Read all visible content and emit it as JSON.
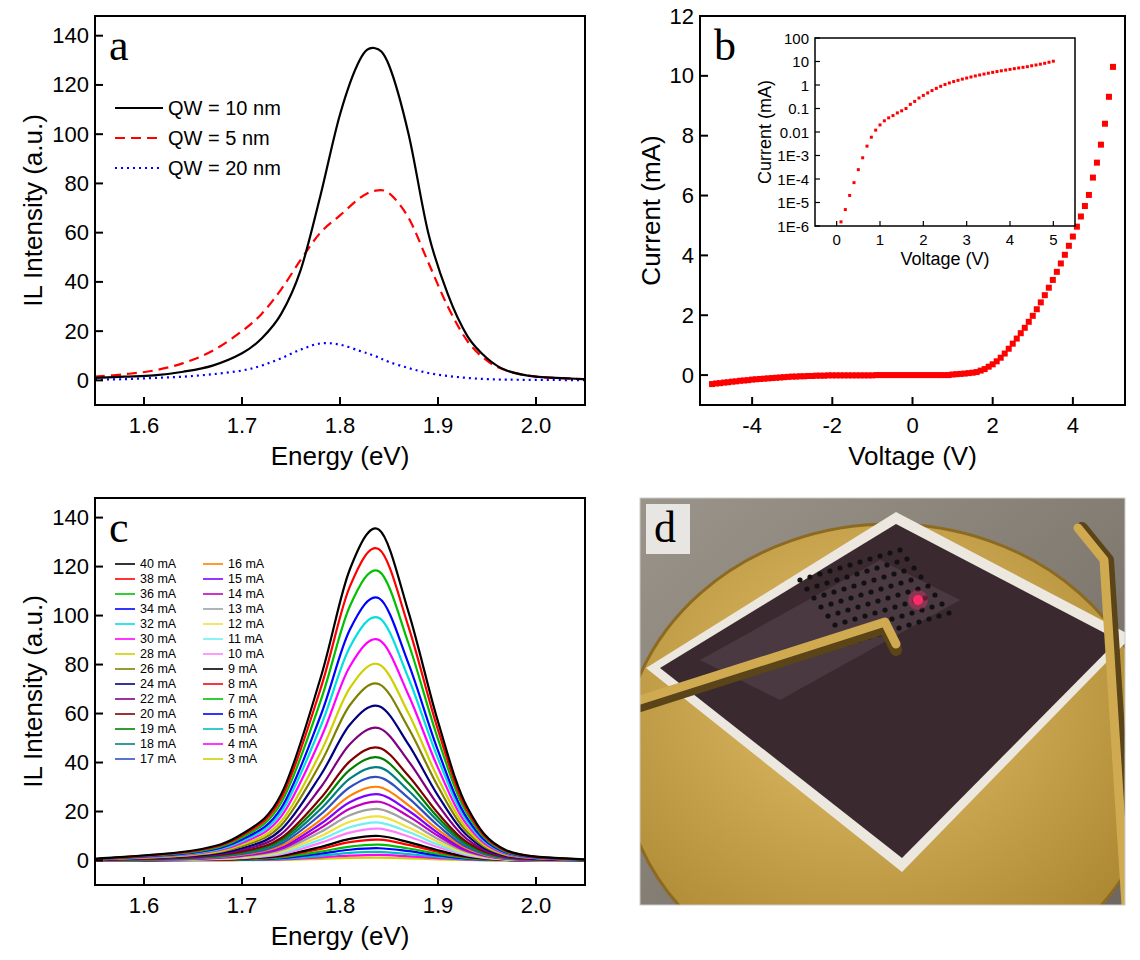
{
  "chart_data": [
    {
      "type": "line",
      "panel": "a",
      "xlabel": "Energy (eV)",
      "ylabel": "IL Intensity (a.u.)",
      "xlim": [
        1.55,
        2.05
      ],
      "ylim": [
        -10,
        148
      ],
      "xticks": [
        1.6,
        1.7,
        1.8,
        1.9,
        {
          "value": 2,
          "label": "2.0"
        }
      ],
      "yticks": [
        0,
        20,
        40,
        60,
        80,
        100,
        120,
        140
      ],
      "grid": false,
      "legend": "upper left",
      "x": [
        1.55,
        1.58,
        1.61,
        1.64,
        1.67,
        1.7,
        1.72,
        1.74,
        1.76,
        1.78,
        1.8,
        1.82,
        1.835,
        1.85,
        1.87,
        1.89,
        1.91,
        1.93,
        1.95,
        1.97,
        2,
        2.05
      ],
      "series": [
        {
          "name": "QW = 10 nm",
          "color": "#000000",
          "line_style": "solid",
          "values": [
            1,
            1.5,
            2,
            3.5,
            6,
            11,
            17,
            27,
            45,
            75,
            108,
            130,
            135,
            128,
            100,
            60,
            35,
            18,
            9,
            4,
            1.5,
            0.5
          ]
        },
        {
          "name": "QW = 5 nm",
          "color": "#ff0000",
          "line_style": "dashed",
          "values": [
            1.5,
            2.5,
            4,
            7,
            12,
            20,
            27,
            37,
            49,
            60,
            67,
            74,
            77,
            76,
            66,
            48,
            30,
            16,
            8,
            4,
            1.5,
            0.5
          ]
        },
        {
          "name": "QW = 20 nm",
          "color": "#0000ff",
          "line_style": "dotted",
          "values": [
            0.3,
            0.5,
            1,
            1.5,
            2.5,
            4,
            6,
            9,
            12.5,
            15,
            14.5,
            12,
            10,
            7.5,
            5,
            3,
            1.8,
            1,
            0.5,
            0.3,
            0.2,
            0.1
          ]
        }
      ]
    },
    {
      "type": "scatter",
      "panel": "b",
      "xlabel": "Voltage (V)",
      "ylabel": "Current (mA)",
      "xlim": [
        -5.3,
        5.3
      ],
      "ylim": [
        -1,
        12
      ],
      "xticks": [
        -4,
        -2,
        0,
        2,
        4
      ],
      "yticks": [
        0,
        2,
        4,
        6,
        8,
        10,
        12
      ],
      "grid": false,
      "marker": "square",
      "color": "#ff0000",
      "x": [
        -5,
        -4.9,
        -4.8,
        -4.7,
        -4.6,
        -4.5,
        -4.4,
        -4.3,
        -4.2,
        -4.1,
        -4,
        -3.9,
        -3.8,
        -3.7,
        -3.6,
        -3.5,
        -3.4,
        -3.3,
        -3.2,
        -3.1,
        -3,
        -2.9,
        -2.8,
        -2.7,
        -2.6,
        -2.5,
        -2.4,
        -2.3,
        -2.2,
        -2.1,
        -2,
        -1.9,
        -1.8,
        -1.7,
        -1.6,
        -1.5,
        -1.4,
        -1.3,
        -1.2,
        -1.1,
        -1,
        -0.9,
        -0.8,
        -0.7,
        -0.6,
        -0.5,
        -0.4,
        -0.3,
        -0.2,
        -0.1,
        0,
        0.1,
        0.2,
        0.3,
        0.4,
        0.5,
        0.6,
        0.7,
        0.8,
        0.9,
        1,
        1.1,
        1.2,
        1.3,
        1.4,
        1.5,
        1.6,
        1.7,
        1.8,
        1.9,
        2,
        2.1,
        2.2,
        2.3,
        2.4,
        2.5,
        2.6,
        2.7,
        2.8,
        2.9,
        3,
        3.1,
        3.2,
        3.3,
        3.4,
        3.5,
        3.6,
        3.7,
        3.8,
        3.9,
        4,
        4.1,
        4.2,
        4.3,
        4.4,
        4.5,
        4.6,
        4.7,
        4.8,
        4.9,
        5
      ],
      "values": [
        -0.3,
        -0.28,
        -0.27,
        -0.25,
        -0.24,
        -0.22,
        -0.21,
        -0.19,
        -0.18,
        -0.17,
        -0.15,
        -0.14,
        -0.13,
        -0.12,
        -0.11,
        -0.1,
        -0.09,
        -0.08,
        -0.07,
        -0.06,
        -0.05,
        -0.05,
        -0.04,
        -0.04,
        -0.03,
        -0.03,
        -0.02,
        -0.02,
        -0.02,
        -0.01,
        -0.01,
        -0.01,
        -0.01,
        -0.01,
        -0.01,
        -0.01,
        -0.01,
        -0.01,
        -0.01,
        -0.01,
        -0.01,
        0,
        0,
        0,
        0,
        0,
        0,
        0,
        0,
        0,
        0,
        0,
        0,
        0,
        0,
        0,
        0,
        0,
        0,
        0,
        0.02,
        0.03,
        0.04,
        0.05,
        0.065,
        0.08,
        0.1,
        0.15,
        0.2,
        0.28,
        0.36,
        0.46,
        0.58,
        0.72,
        0.88,
        1.05,
        1.22,
        1.4,
        1.58,
        1.78,
        1.98,
        2.2,
        2.43,
        2.67,
        2.92,
        3.18,
        3.45,
        3.73,
        4.02,
        4.32,
        4.63,
        4.96,
        5.3,
        5.65,
        6.02,
        6.6,
        7.1,
        7.7,
        8.4,
        9.3,
        10.3
      ]
    },
    {
      "type": "scatter",
      "xlabel": "Voltage (V)",
      "ylabel": "Current (mA)",
      "log": "y",
      "xlim": [
        -0.5,
        5.5
      ],
      "ylim": [
        1e-06,
        100
      ],
      "xticks": [
        0,
        1,
        2,
        3,
        4,
        5
      ],
      "yticks": [
        {
          "value": 1e-06,
          "label": "1E-6"
        },
        {
          "value": 1e-05,
          "label": "1E-5"
        },
        {
          "value": 0.0001,
          "label": "1E-4"
        },
        {
          "value": 0.001,
          "label": "1E-3"
        },
        0.01,
        0.1,
        1,
        10,
        100
      ],
      "grid": false,
      "marker": "square",
      "color": "#ff0000",
      "x": [
        0.1,
        0.2,
        0.3,
        0.4,
        0.5,
        0.6,
        0.7,
        0.8,
        0.9,
        1,
        1.1,
        1.2,
        1.3,
        1.4,
        1.5,
        1.6,
        1.7,
        1.8,
        1.9,
        2,
        2.1,
        2.2,
        2.3,
        2.4,
        2.5,
        2.6,
        2.7,
        2.8,
        2.9,
        3,
        3.1,
        3.2,
        3.3,
        3.4,
        3.5,
        3.6,
        3.7,
        3.8,
        3.9,
        4,
        4.1,
        4.2,
        4.3,
        4.4,
        4.5,
        4.6,
        4.7,
        4.8,
        4.9,
        5
      ],
      "values": [
        1.5e-06,
        5e-06,
        2e-05,
        7e-05,
        0.00025,
        0.0008,
        0.0025,
        0.006,
        0.012,
        0.02,
        0.03,
        0.04,
        0.05,
        0.065,
        0.08,
        0.1,
        0.15,
        0.2,
        0.28,
        0.36,
        0.46,
        0.58,
        0.72,
        0.88,
        1.05,
        1.22,
        1.4,
        1.58,
        1.78,
        1.98,
        2.2,
        2.43,
        2.67,
        2.92,
        3.18,
        3.45,
        3.73,
        4.02,
        4.32,
        4.63,
        4.96,
        5.3,
        5.65,
        6.02,
        6.6,
        7.1,
        7.7,
        8.4,
        9.3,
        10.3
      ]
    },
    {
      "type": "line",
      "panel": "c",
      "xlabel": "Energy (eV)",
      "ylabel": "IL Intensity (a.u.)",
      "xlim": [
        1.55,
        2.05
      ],
      "ylim": [
        -10,
        148
      ],
      "xticks": [
        1.6,
        1.7,
        1.8,
        1.9,
        {
          "value": 2,
          "label": "2.0"
        }
      ],
      "yticks": [
        0,
        20,
        40,
        60,
        80,
        100,
        120,
        140
      ],
      "grid": false,
      "legend": "upper left",
      "line_style": "solid",
      "x": [
        1.55,
        1.65,
        1.7,
        1.74,
        1.78,
        1.81,
        1.84,
        1.87,
        1.9,
        1.93,
        1.97,
        2.05
      ],
      "series": [
        {
          "name": "40 mA",
          "color": "#000000",
          "values": [
            0.7,
            4.1,
            10.8,
            27,
            74.3,
            118.8,
            135,
            101.3,
            56.7,
            21.6,
            4.1,
            0.4
          ]
        },
        {
          "name": "38 mA",
          "color": "#ff0000",
          "values": [
            0.6,
            3.8,
            10.2,
            25.4,
            69.9,
            111.8,
            127,
            95.3,
            53.3,
            20.3,
            3.8,
            0.4
          ]
        },
        {
          "name": "36 mA",
          "color": "#00c000",
          "values": [
            0.6,
            3.5,
            9.4,
            23.6,
            64.9,
            103.8,
            118,
            88.5,
            49.6,
            18.9,
            3.5,
            0.4
          ]
        },
        {
          "name": "34 mA",
          "color": "#0000ff",
          "values": [
            0.5,
            3.2,
            8.6,
            21.4,
            58.9,
            94.2,
            107,
            80.3,
            44.9,
            17.1,
            3.2,
            0.3
          ]
        },
        {
          "name": "32 mA",
          "color": "#00e0e0",
          "values": [
            0.5,
            3,
            7.9,
            19.8,
            54.5,
            87.1,
            99,
            74.3,
            41.6,
            15.8,
            3,
            0.3
          ]
        },
        {
          "name": "30 mA",
          "color": "#ff00ff",
          "values": [
            0.5,
            2.7,
            7.2,
            18,
            49.5,
            79.2,
            90,
            67.5,
            37.8,
            14.4,
            2.7,
            0.3
          ]
        },
        {
          "name": "28 mA",
          "color": "#d0d000",
          "values": [
            0.4,
            2.4,
            6.4,
            16,
            44,
            70.4,
            80,
            60,
            33.6,
            12.8,
            2.4,
            0.2
          ]
        },
        {
          "name": "26 mA",
          "color": "#808000",
          "values": [
            0.4,
            2.2,
            5.8,
            14.4,
            39.6,
            63.4,
            72,
            54,
            30.2,
            11.5,
            2.2,
            0.2
          ]
        },
        {
          "name": "24 mA",
          "color": "#000080",
          "values": [
            0.3,
            1.9,
            5,
            12.6,
            34.7,
            55.4,
            63,
            47.3,
            26.5,
            10.1,
            1.9,
            0.2
          ]
        },
        {
          "name": "22 mA",
          "color": "#800080",
          "values": [
            0.3,
            1.6,
            4.3,
            10.8,
            29.7,
            47.5,
            54,
            40.5,
            22.7,
            8.6,
            1.6,
            0.2
          ]
        },
        {
          "name": "20 mA",
          "color": "#800000",
          "values": [
            0.2,
            1.4,
            3.7,
            9.2,
            25.3,
            40.5,
            46,
            34.5,
            19.3,
            7.4,
            1.4,
            0.1
          ]
        },
        {
          "name": "19 mA",
          "color": "#008000",
          "values": [
            0.2,
            1.3,
            3.4,
            8.4,
            23.1,
            37,
            42,
            31.5,
            17.6,
            6.7,
            1.3,
            0.1
          ]
        },
        {
          "name": "18 mA",
          "color": "#008080",
          "values": [
            0.2,
            1.1,
            3,
            7.6,
            20.9,
            33.4,
            38,
            28.5,
            16,
            6.1,
            1.1,
            0.1
          ]
        },
        {
          "name": "17 mA",
          "color": "#3050c0",
          "values": [
            0.2,
            1,
            2.7,
            6.8,
            18.7,
            29.9,
            34,
            25.5,
            14.3,
            5.4,
            1,
            0.1
          ]
        },
        {
          "name": "16 mA",
          "color": "#ff8000",
          "values": [
            0.2,
            0.9,
            2.4,
            6,
            16.5,
            26.4,
            30,
            22.5,
            12.6,
            4.8,
            0.9,
            0.1
          ]
        },
        {
          "name": "15 mA",
          "color": "#8000ff",
          "values": [
            0.1,
            0.8,
            2.2,
            5.4,
            14.9,
            23.8,
            27,
            20.3,
            11.3,
            4.3,
            0.8,
            0.1
          ]
        },
        {
          "name": "14 mA",
          "color": "#c000c0",
          "values": [
            0.1,
            0.7,
            1.9,
            4.8,
            13.2,
            21.1,
            24,
            18,
            10.1,
            3.8,
            0.7,
            0.1
          ]
        },
        {
          "name": "13 mA",
          "color": "#a0a0a0",
          "values": [
            0.1,
            0.6,
            1.7,
            4.2,
            11.6,
            18.5,
            21,
            15.8,
            8.8,
            3.4,
            0.6,
            0.1
          ]
        },
        {
          "name": "12 mA",
          "color": "#f0e040",
          "values": [
            0.1,
            0.5,
            1.4,
            3.6,
            9.9,
            15.8,
            18,
            13.5,
            7.6,
            2.9,
            0.5,
            0.1
          ]
        },
        {
          "name": "11 mA",
          "color": "#70f0f0",
          "values": [
            0.1,
            0.5,
            1.2,
            3.1,
            8.5,
            13.6,
            15.5,
            11.6,
            6.5,
            2.5,
            0.5,
            0
          ]
        },
        {
          "name": "10 mA",
          "color": "#ff80ff",
          "values": [
            0.1,
            0.4,
            1,
            2.6,
            7.2,
            11.4,
            13,
            9.8,
            5.5,
            2.1,
            0.4,
            0
          ]
        },
        {
          "name": "9 mA",
          "color": "#000000",
          "values": [
            0.1,
            0.3,
            0.8,
            2,
            5.5,
            8.8,
            10,
            7.5,
            4.2,
            1.6,
            0.3,
            0
          ]
        },
        {
          "name": "8 mA",
          "color": "#ff0000",
          "values": [
            0,
            0.3,
            0.7,
            1.7,
            4.7,
            7.5,
            8.5,
            6.4,
            3.6,
            1.4,
            0.3,
            0
          ]
        },
        {
          "name": "7 mA",
          "color": "#00c000",
          "values": [
            0,
            0.2,
            0.5,
            1.3,
            3.6,
            5.7,
            6.5,
            4.9,
            2.7,
            1,
            0.2,
            0
          ]
        },
        {
          "name": "6 mA",
          "color": "#0000ff",
          "values": [
            0,
            0.2,
            0.4,
            1,
            2.8,
            4.4,
            5,
            3.8,
            2.1,
            0.8,
            0.2,
            0
          ]
        },
        {
          "name": "5 mA",
          "color": "#00c0c0",
          "values": [
            0,
            0.1,
            0.3,
            0.7,
            1.9,
            3.1,
            3.5,
            2.6,
            1.5,
            0.6,
            0.1,
            0
          ]
        },
        {
          "name": "4 mA",
          "color": "#ff00ff",
          "values": [
            0,
            0.1,
            0.2,
            0.5,
            1.3,
            2,
            2.3,
            1.7,
            1,
            0.4,
            0.1,
            0
          ]
        },
        {
          "name": "3 mA",
          "color": "#d0d000",
          "values": [
            0,
            0,
            0.1,
            0.2,
            0.7,
            1.1,
            1.2,
            0.9,
            0.5,
            0.2,
            0,
            0
          ]
        }
      ]
    },
    {
      "type": "image",
      "panel": "d"
    }
  ]
}
